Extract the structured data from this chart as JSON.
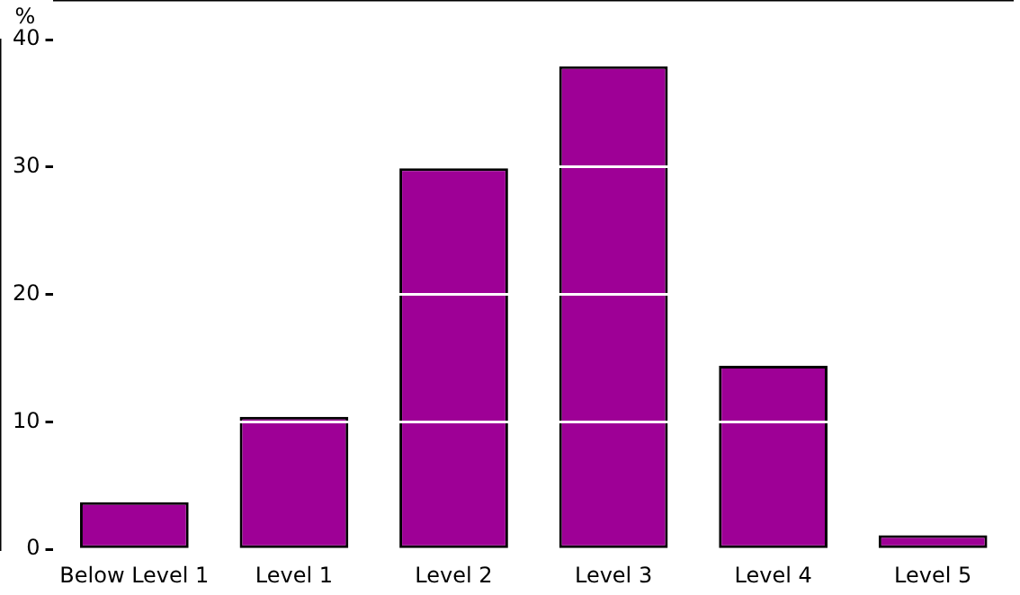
{
  "chart_data": {
    "type": "bar",
    "ylabel": "%",
    "categories": [
      "Below Level 1",
      "Level 1",
      "Level 2",
      "Level 3",
      "Level 4",
      "Level 5"
    ],
    "values": [
      3.7,
      10.4,
      29.9,
      37.9,
      14.4,
      1.1
    ],
    "color": "#9e0096",
    "ylim": [
      0,
      40
    ],
    "yticks": [
      0,
      10,
      20,
      30,
      40
    ],
    "grid": "y"
  }
}
